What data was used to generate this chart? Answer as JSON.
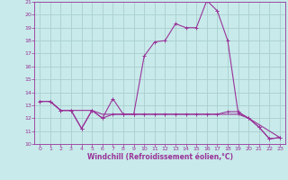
{
  "title": "",
  "xlabel": "Windchill (Refroidissement éolien,°C)",
  "background_color": "#c8eaea",
  "grid_color": "#aacfcf",
  "line_color": "#993399",
  "xlim": [
    -0.5,
    23.5
  ],
  "ylim": [
    10,
    21
  ],
  "yticks": [
    10,
    11,
    12,
    13,
    14,
    15,
    16,
    17,
    18,
    19,
    20,
    21
  ],
  "xticks": [
    0,
    1,
    2,
    3,
    4,
    5,
    6,
    7,
    8,
    9,
    10,
    11,
    12,
    13,
    14,
    15,
    16,
    17,
    18,
    19,
    20,
    21,
    22,
    23
  ],
  "hours": [
    0,
    1,
    2,
    3,
    4,
    5,
    6,
    7,
    8,
    9,
    10,
    11,
    12,
    13,
    14,
    15,
    16,
    17,
    18,
    19,
    20,
    21,
    22,
    23
  ],
  "line1": [
    13.3,
    13.3,
    12.6,
    12.6,
    11.2,
    12.6,
    12.0,
    13.5,
    12.3,
    12.3,
    16.8,
    17.9,
    18.0,
    19.3,
    19.0,
    19.0,
    21.1,
    20.3,
    18.0,
    12.4,
    12.0,
    11.3,
    10.4,
    10.5
  ],
  "line2": [
    13.3,
    13.3,
    12.6,
    12.6,
    11.2,
    12.6,
    12.0,
    12.3,
    12.3,
    12.3,
    12.3,
    12.3,
    12.3,
    12.3,
    12.3,
    12.3,
    12.3,
    12.3,
    12.5,
    12.5,
    12.0,
    11.3,
    10.4,
    10.5
  ],
  "line3": [
    13.3,
    13.3,
    12.6,
    12.6,
    12.6,
    12.6,
    12.3,
    12.3,
    12.3,
    12.3,
    12.3,
    12.3,
    12.3,
    12.3,
    12.3,
    12.3,
    12.3,
    12.3,
    12.3,
    12.3,
    12.0,
    11.5,
    11.0,
    10.5
  ]
}
